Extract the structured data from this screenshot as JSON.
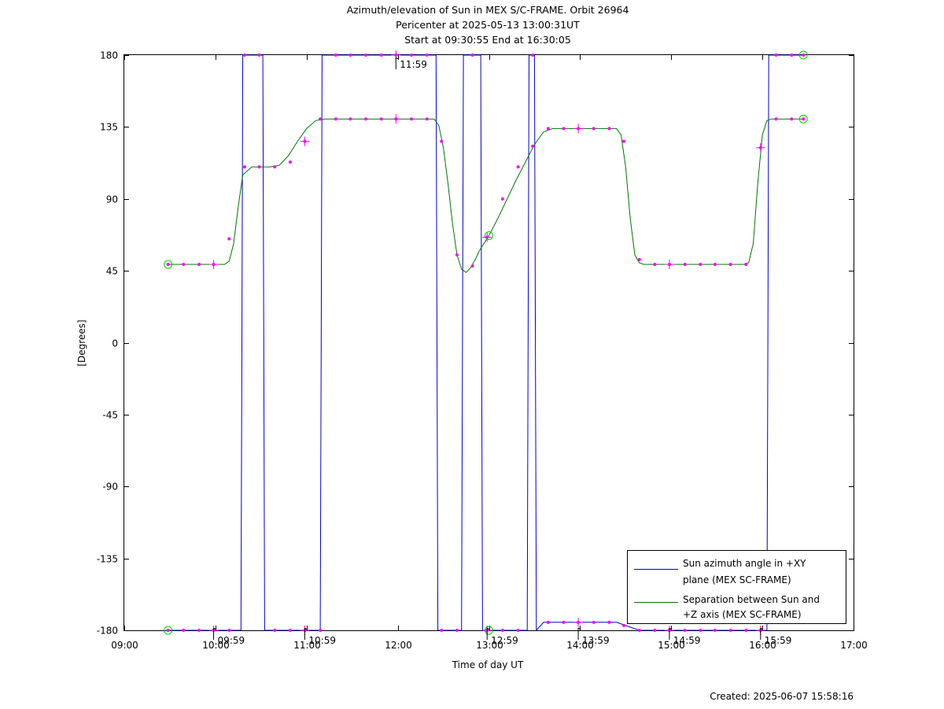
{
  "chart_data": {
    "type": "line",
    "title_lines": [
      "Azimuth/elevation of Sun in MEX S/C-FRAME.  Orbit 26964",
      "Pericenter at 2025-05-13 13:00:31UT",
      "Start at 09:30:55 End at 16:30:05"
    ],
    "xlabel": "Time of day UT",
    "ylabel": "[Degrees]",
    "xlim": [
      9.0,
      17.0
    ],
    "ylim": [
      -180,
      180
    ],
    "x_ticks": [
      9,
      10,
      11,
      12,
      13,
      14,
      15,
      16,
      17
    ],
    "x_tick_labels": [
      "09:00",
      "10:00",
      "11:00",
      "12:00",
      "13:00",
      "14:00",
      "15:00",
      "16:00",
      "17:00"
    ],
    "y_ticks": [
      180,
      135,
      90,
      45,
      0,
      -45,
      -90,
      -135,
      -180
    ],
    "y_tick_labels": [
      "180",
      "135",
      "90",
      "45",
      "0",
      "-45",
      "-90",
      "-135",
      "-180"
    ],
    "grid": false,
    "legend_position": "bottom-right",
    "annotations": [
      {
        "x": 11.98,
        "y": 180,
        "text": "11:59",
        "side": "below"
      },
      {
        "x": 9.98,
        "y": -180,
        "text": "09:59",
        "side": "above"
      },
      {
        "x": 10.98,
        "y": -180,
        "text": "10:59",
        "side": "above"
      },
      {
        "x": 12.98,
        "y": -180,
        "text": "12:59",
        "side": "above"
      },
      {
        "x": 13.98,
        "y": -180,
        "text": "13:59",
        "side": "above"
      },
      {
        "x": 14.98,
        "y": -180,
        "text": "14:59",
        "side": "above"
      },
      {
        "x": 15.98,
        "y": -180,
        "text": "15:59",
        "side": "above"
      }
    ],
    "series": [
      {
        "name": "Sun azimuth angle in +XY plane (MEX SC-FRAME)",
        "legend_lines": [
          "Sun azimuth angle in +XY",
          "plane (MEX SC-FRAME)"
        ],
        "color": "#0000cc",
        "x": [
          9.48,
          10.28,
          10.29,
          10.3,
          10.52,
          10.53,
          10.54,
          11.15,
          11.16,
          11.17,
          12.42,
          12.43,
          12.44,
          12.7,
          12.71,
          12.72,
          12.91,
          12.92,
          12.93,
          13.42,
          13.43,
          13.44,
          13.5,
          13.51,
          13.52,
          13.6,
          14.4,
          14.65,
          15.85,
          16.05,
          16.06,
          16.07,
          16.45
        ],
        "y": [
          -180,
          -180,
          0,
          180,
          180,
          0,
          -180,
          -180,
          0,
          180,
          180,
          0,
          -180,
          -180,
          0,
          180,
          180,
          0,
          -180,
          -180,
          0,
          180,
          180,
          0,
          -180,
          -175,
          -175,
          -180,
          -180,
          -180,
          0,
          180,
          180
        ]
      },
      {
        "name": "Separation between Sun and +Z axis (MEX SC-FRAME)",
        "legend_lines": [
          "Separation between Sun and",
          "+Z axis (MEX SC-FRAME)"
        ],
        "color": "#007700",
        "x": [
          9.48,
          10.1,
          10.15,
          10.2,
          10.25,
          10.3,
          10.4,
          10.5,
          10.6,
          10.7,
          10.8,
          10.9,
          11.0,
          11.1,
          11.2,
          12.0,
          12.4,
          12.45,
          12.5,
          12.55,
          12.6,
          12.65,
          12.7,
          12.75,
          12.8,
          12.85,
          12.9,
          13.0,
          13.1,
          13.2,
          13.3,
          13.4,
          13.5,
          13.6,
          13.7,
          14.4,
          14.45,
          14.5,
          14.55,
          14.6,
          14.65,
          14.7,
          15.0,
          15.8,
          15.85,
          15.9,
          15.95,
          16.0,
          16.05,
          16.1,
          16.45
        ],
        "y": [
          49,
          49,
          51,
          62,
          85,
          105,
          110,
          110,
          110,
          111,
          117,
          126,
          134,
          139,
          140,
          140,
          140,
          136,
          122,
          100,
          75,
          55,
          46,
          44,
          47,
          52,
          58,
          67,
          78,
          90,
          102,
          113,
          124,
          132,
          134,
          134,
          130,
          110,
          78,
          55,
          50,
          49,
          49,
          49,
          50,
          62,
          100,
          130,
          139,
          140,
          140
        ]
      }
    ],
    "marker_points": [
      {
        "x": 9.48,
        "y": 49
      },
      {
        "x": 9.65,
        "y": 49
      },
      {
        "x": 9.82,
        "y": 49
      },
      {
        "x": 9.98,
        "y": 49
      },
      {
        "x": 10.15,
        "y": 65
      },
      {
        "x": 10.32,
        "y": 110
      },
      {
        "x": 10.48,
        "y": 110
      },
      {
        "x": 10.65,
        "y": 110
      },
      {
        "x": 10.82,
        "y": 113
      },
      {
        "x": 10.98,
        "y": 126
      },
      {
        "x": 11.15,
        "y": 140
      },
      {
        "x": 11.32,
        "y": 140
      },
      {
        "x": 11.48,
        "y": 140
      },
      {
        "x": 11.65,
        "y": 140
      },
      {
        "x": 11.82,
        "y": 140
      },
      {
        "x": 11.98,
        "y": 140
      },
      {
        "x": 12.15,
        "y": 140
      },
      {
        "x": 12.32,
        "y": 140
      },
      {
        "x": 12.48,
        "y": 126
      },
      {
        "x": 12.65,
        "y": 55
      },
      {
        "x": 12.82,
        "y": 48
      },
      {
        "x": 12.98,
        "y": 66
      },
      {
        "x": 13.15,
        "y": 90
      },
      {
        "x": 13.32,
        "y": 110
      },
      {
        "x": 13.48,
        "y": 123
      },
      {
        "x": 13.65,
        "y": 134
      },
      {
        "x": 13.82,
        "y": 134
      },
      {
        "x": 13.98,
        "y": 134
      },
      {
        "x": 14.15,
        "y": 134
      },
      {
        "x": 14.32,
        "y": 134
      },
      {
        "x": 14.48,
        "y": 126
      },
      {
        "x": 14.65,
        "y": 52
      },
      {
        "x": 14.82,
        "y": 49
      },
      {
        "x": 14.98,
        "y": 49
      },
      {
        "x": 15.15,
        "y": 49
      },
      {
        "x": 15.32,
        "y": 49
      },
      {
        "x": 15.48,
        "y": 49
      },
      {
        "x": 15.65,
        "y": 49
      },
      {
        "x": 15.82,
        "y": 49
      },
      {
        "x": 15.98,
        "y": 122
      },
      {
        "x": 16.15,
        "y": 140
      },
      {
        "x": 16.32,
        "y": 140
      },
      {
        "x": 16.45,
        "y": 140
      },
      {
        "x": 9.48,
        "y": -180
      },
      {
        "x": 9.65,
        "y": -180
      },
      {
        "x": 9.82,
        "y": -180
      },
      {
        "x": 9.98,
        "y": -180
      },
      {
        "x": 10.15,
        "y": -180
      },
      {
        "x": 10.32,
        "y": 180
      },
      {
        "x": 10.48,
        "y": 180
      },
      {
        "x": 10.65,
        "y": -180
      },
      {
        "x": 10.82,
        "y": -180
      },
      {
        "x": 10.98,
        "y": -180
      },
      {
        "x": 11.15,
        "y": -180
      },
      {
        "x": 11.32,
        "y": 180
      },
      {
        "x": 11.48,
        "y": 180
      },
      {
        "x": 11.65,
        "y": 180
      },
      {
        "x": 11.82,
        "y": 180
      },
      {
        "x": 11.98,
        "y": 180
      },
      {
        "x": 12.15,
        "y": 180
      },
      {
        "x": 12.32,
        "y": 180
      },
      {
        "x": 12.48,
        "y": -180
      },
      {
        "x": 12.65,
        "y": -180
      },
      {
        "x": 12.82,
        "y": 180
      },
      {
        "x": 12.98,
        "y": -180
      },
      {
        "x": 13.15,
        "y": -180
      },
      {
        "x": 13.32,
        "y": -180
      },
      {
        "x": 13.48,
        "y": 180
      },
      {
        "x": 13.65,
        "y": -175
      },
      {
        "x": 13.82,
        "y": -175
      },
      {
        "x": 13.98,
        "y": -175
      },
      {
        "x": 14.15,
        "y": -175
      },
      {
        "x": 14.32,
        "y": -175
      },
      {
        "x": 14.48,
        "y": -177
      },
      {
        "x": 14.65,
        "y": -180
      },
      {
        "x": 14.82,
        "y": -180
      },
      {
        "x": 14.98,
        "y": -180
      },
      {
        "x": 15.15,
        "y": -180
      },
      {
        "x": 15.32,
        "y": -180
      },
      {
        "x": 15.48,
        "y": -180
      },
      {
        "x": 15.65,
        "y": -180
      },
      {
        "x": 15.82,
        "y": -180
      },
      {
        "x": 15.98,
        "y": -180
      },
      {
        "x": 16.15,
        "y": 180
      },
      {
        "x": 16.32,
        "y": 180
      },
      {
        "x": 16.45,
        "y": 180
      }
    ],
    "cross_markers": [
      {
        "x": 9.98,
        "y": 49
      },
      {
        "x": 10.98,
        "y": 126
      },
      {
        "x": 11.98,
        "y": 140
      },
      {
        "x": 12.98,
        "y": 66
      },
      {
        "x": 13.98,
        "y": 134
      },
      {
        "x": 14.98,
        "y": 49
      },
      {
        "x": 15.98,
        "y": 122
      },
      {
        "x": 11.98,
        "y": 180
      },
      {
        "x": 9.98,
        "y": -180
      },
      {
        "x": 10.98,
        "y": -180
      },
      {
        "x": 12.98,
        "y": -180
      },
      {
        "x": 13.98,
        "y": -175
      },
      {
        "x": 14.98,
        "y": -180
      },
      {
        "x": 15.98,
        "y": -180
      }
    ],
    "circle_markers": [
      {
        "x": 9.48,
        "y": 49
      },
      {
        "x": 9.48,
        "y": -180
      },
      {
        "x": 13.0,
        "y": 67
      },
      {
        "x": 13.0,
        "y": -180
      },
      {
        "x": 16.45,
        "y": 180
      },
      {
        "x": 16.45,
        "y": 140
      }
    ],
    "marker_color": "#ff00ff",
    "circle_color": "#00cc00"
  },
  "footer": {
    "created": "Created: 2025-06-07 15:58:16"
  }
}
